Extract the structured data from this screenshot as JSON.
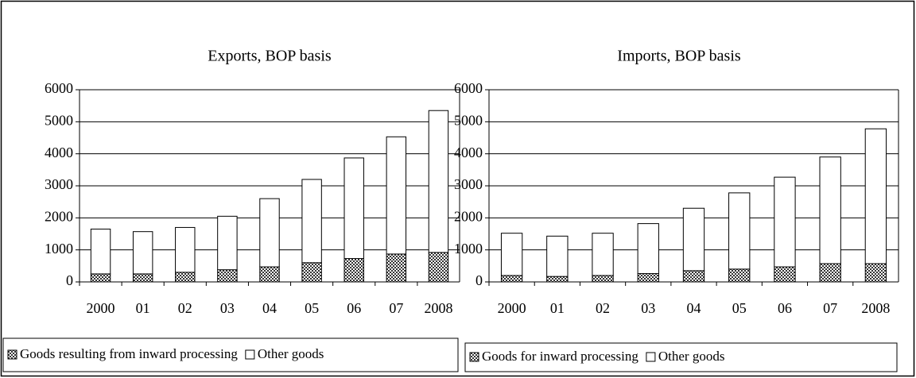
{
  "chart_data": [
    {
      "type": "bar",
      "stacked": true,
      "title": "Exports, BOP basis",
      "categories": [
        "2000",
        "01",
        "02",
        "03",
        "04",
        "05",
        "06",
        "07",
        "2008"
      ],
      "series": [
        {
          "name": "Goods resulting from inward processing",
          "color": "#333333",
          "pattern": "checker",
          "values": [
            250,
            250,
            300,
            380,
            470,
            600,
            730,
            870,
            920
          ]
        },
        {
          "name": "Other goods",
          "color": "#ffffff",
          "values": [
            1400,
            1320,
            1400,
            1670,
            2130,
            2600,
            3140,
            3660,
            4430
          ]
        }
      ],
      "ylim": [
        0,
        6000
      ],
      "yticks": [
        0,
        1000,
        2000,
        3000,
        4000,
        5000,
        6000
      ],
      "grid": true,
      "legend": "bottom"
    },
    {
      "type": "bar",
      "stacked": true,
      "title": "Imports, BOP basis",
      "categories": [
        "2000",
        "01",
        "02",
        "03",
        "04",
        "05",
        "06",
        "07",
        "2008"
      ],
      "series": [
        {
          "name": "Goods for inward processing",
          "color": "#333333",
          "pattern": "checker",
          "values": [
            200,
            170,
            200,
            260,
            350,
            400,
            470,
            570,
            570
          ]
        },
        {
          "name": "Other goods",
          "color": "#ffffff",
          "values": [
            1320,
            1260,
            1320,
            1560,
            1950,
            2380,
            2800,
            3330,
            4210
          ]
        }
      ],
      "ylim": [
        0,
        6000
      ],
      "yticks": [
        0,
        1000,
        2000,
        3000,
        4000,
        5000,
        6000
      ],
      "grid": true,
      "legend": "bottom"
    }
  ]
}
